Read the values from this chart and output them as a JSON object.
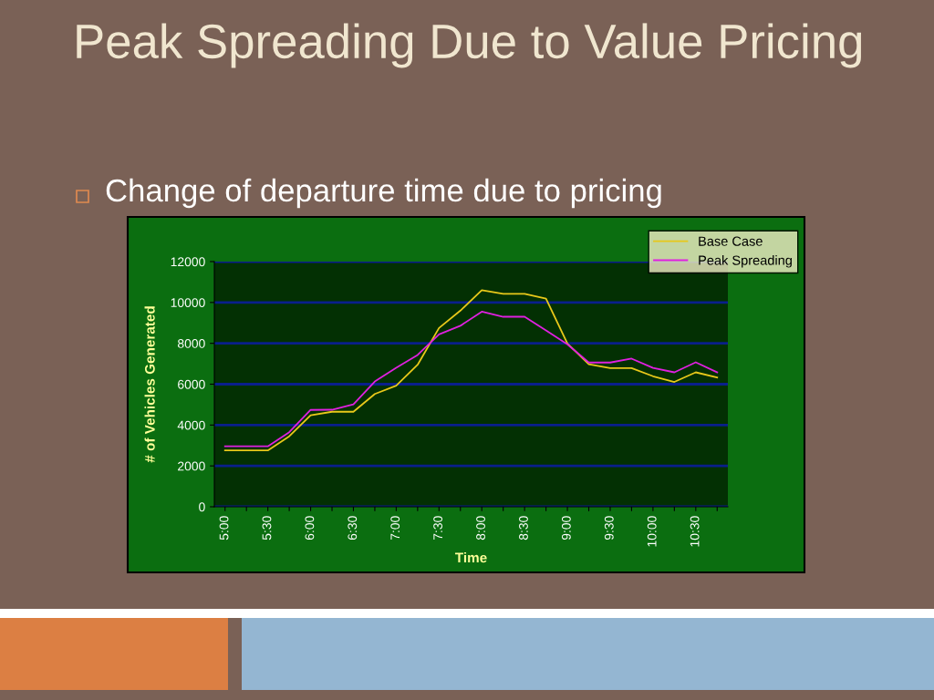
{
  "chart_data": {
    "type": "line",
    "title": "Peak Spreading Due to Value Pricing",
    "subtitle": "Change of departure time due to pricing",
    "xlabel": "Time",
    "ylabel": "# of Vehicles Generated",
    "categories": [
      "5:00",
      null,
      "5:30",
      null,
      "6:00",
      null,
      "6:30",
      null,
      "7:00",
      null,
      "7:30",
      null,
      "8:00",
      null,
      "8:30",
      null,
      "9:00",
      null,
      "9:30",
      null,
      "10:00",
      null,
      "10:30",
      null
    ],
    "series": [
      {
        "name": "Base Case",
        "color": "#e8c81a",
        "values": [
          2760,
          2760,
          2760,
          3450,
          4480,
          4650,
          4650,
          5520,
          5930,
          6950,
          8750,
          9600,
          10600,
          10420,
          10420,
          10190,
          7990,
          6980,
          6790,
          6790,
          6390,
          6110,
          6580,
          6330
        ]
      },
      {
        "name": "Peak Spreading",
        "color": "#e020e0",
        "values": [
          2960,
          2960,
          2960,
          3650,
          4740,
          4750,
          5010,
          6130,
          6800,
          7430,
          8440,
          8860,
          9550,
          9300,
          9300,
          8630,
          7950,
          7060,
          7060,
          7250,
          6800,
          6580,
          7070,
          6580
        ]
      }
    ],
    "ylim": [
      0,
      12000
    ],
    "yticks": [
      0,
      2000,
      4000,
      6000,
      8000,
      10000,
      12000
    ],
    "grid": "y",
    "legend": "top right",
    "marker": "none",
    "line_style": "solid"
  }
}
